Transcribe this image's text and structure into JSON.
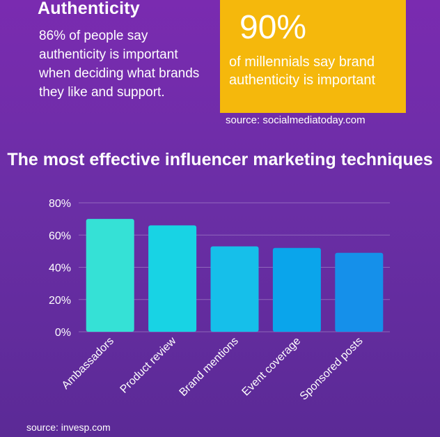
{
  "header": {
    "title": "Authenticity",
    "intro": "86% of people say authenticity is important when deciding what brands they like and support."
  },
  "stat": {
    "value": "90%",
    "description": "of millennials say brand authenticity is important",
    "source": "source: socialmediatoday.com"
  },
  "chart_data": {
    "type": "bar",
    "title": "The most effective influencer marketing techniques",
    "categories": [
      "Ambassadors",
      "Product review",
      "Brand mentions",
      "Event coverage",
      "Sponsored posts"
    ],
    "values": [
      70,
      66,
      53,
      52,
      49
    ],
    "ylim": [
      0,
      80
    ],
    "yticks": [
      "0%",
      "20%",
      "40%",
      "60%",
      "80%"
    ],
    "ytick_values": [
      0,
      20,
      40,
      60,
      80
    ],
    "xlabel": "",
    "ylabel": "",
    "grid": true,
    "colors": [
      "#35e1d6",
      "#18d3e4",
      "#16bfea",
      "#0aa5eb",
      "#1590ea"
    ]
  },
  "footer": {
    "source": "source: invesp.com"
  }
}
